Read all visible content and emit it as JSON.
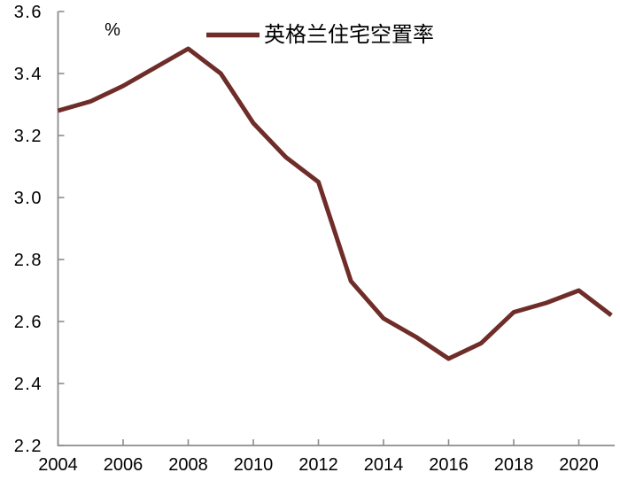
{
  "chart_data": {
    "type": "line",
    "title": "",
    "unit_label": "%",
    "xlabel": "",
    "ylabel": "%",
    "x": [
      2004,
      2005,
      2006,
      2007,
      2008,
      2009,
      2010,
      2011,
      2012,
      2013,
      2014,
      2015,
      2016,
      2017,
      2018,
      2019,
      2020,
      2021
    ],
    "series": [
      {
        "name": "英格兰住宅空置率",
        "color": "#6F2D29",
        "values": [
          3.28,
          3.31,
          3.36,
          3.42,
          3.48,
          3.4,
          3.24,
          3.13,
          3.05,
          2.73,
          2.61,
          2.55,
          2.48,
          2.53,
          2.63,
          2.66,
          2.7,
          2.62
        ]
      }
    ],
    "ylim": [
      2.2,
      3.6
    ],
    "xlim": [
      2004,
      2021
    ],
    "y_ticks": [
      3.6,
      3.4,
      3.2,
      3.0,
      2.8,
      2.6,
      2.4,
      2.2
    ],
    "y_tick_labels": [
      "3.6",
      "3.4",
      "3.2",
      "3.0",
      "2.8",
      "2.6",
      "2.4",
      "2.2"
    ],
    "x_ticks": [
      2004,
      2006,
      2008,
      2010,
      2012,
      2014,
      2016,
      2018,
      2020
    ],
    "x_tick_labels": [
      "2004",
      "2006",
      "2008",
      "2010",
      "2012",
      "2014",
      "2016",
      "2018",
      "2020"
    ],
    "grid": false,
    "legend_position": "top-center",
    "colors": {
      "line": "#6F2D29",
      "axis": "#8C8C8C",
      "text": "#000000",
      "background": "#FFFFFF"
    }
  }
}
